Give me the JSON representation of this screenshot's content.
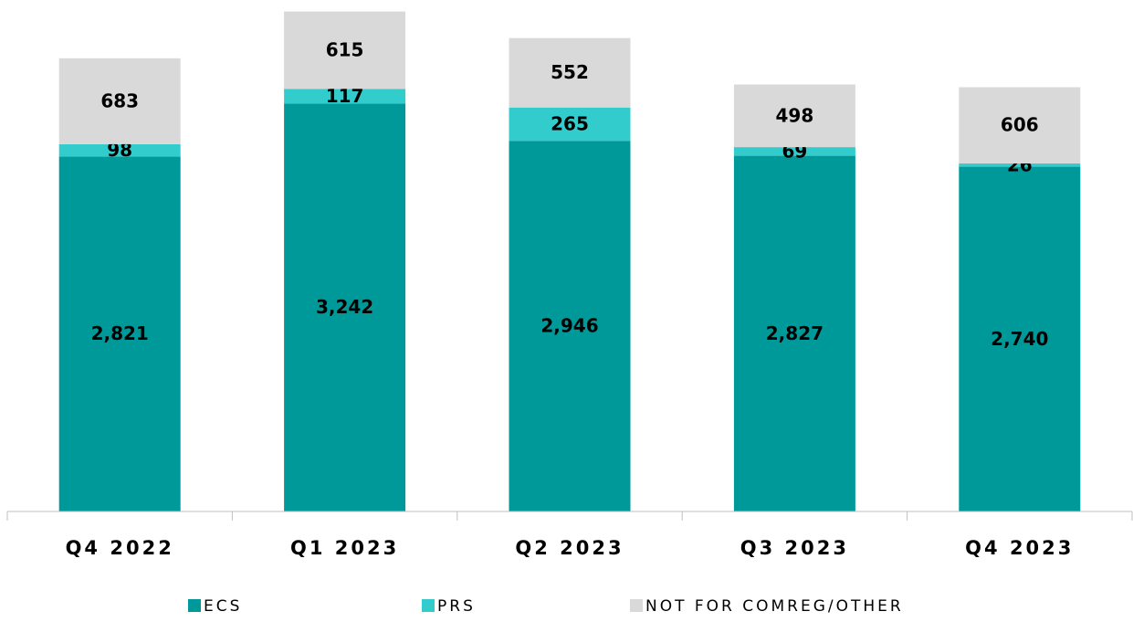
{
  "chart_data": {
    "type": "stacked_bar",
    "categories": [
      "Q4 2022",
      "Q1 2023",
      "Q2 2023",
      "Q3 2023",
      "Q4 2023"
    ],
    "series": [
      {
        "name": "ECS",
        "color": "#009999",
        "values": [
          2821,
          3242,
          2946,
          2827,
          2740
        ],
        "value_labels": [
          "2,821",
          "3,242",
          "2,946",
          "2,827",
          "2,740"
        ]
      },
      {
        "name": "PRS",
        "color": "#33cccc",
        "values": [
          98,
          117,
          265,
          69,
          26
        ]
      },
      {
        "name": "NOT FOR COMREG/OTHER",
        "color": "#d9d9d9",
        "values": [
          683,
          615,
          552,
          498,
          606
        ]
      }
    ],
    "ylim": [
      0,
      4000
    ]
  }
}
